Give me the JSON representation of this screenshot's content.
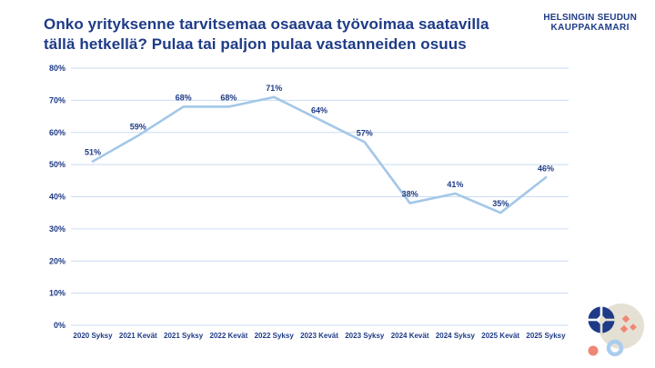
{
  "header": {
    "title_line1": "Onko yrityksenne tarvitsemaa osaavaa työvoimaa saatavilla",
    "title_line2": "tällä hetkellä? Pulaa tai paljon pulaa vastanneiden osuus"
  },
  "logo": {
    "line1": "HELSINGIN SEUDUN",
    "line2": "KAUPPAKAMARI"
  },
  "colors": {
    "navy": "#1e3b87",
    "line_blue": "#a3c7e8",
    "grid_blue": "#c9dcf2",
    "beige": "#e5e0d4",
    "salmon": "#ee8775",
    "ring_blue": "#a9cdee"
  },
  "chart_data": {
    "type": "line",
    "title": "Onko yrityksenne tarvitsemaa osaavaa työvoimaa saatavilla tällä hetkellä? Pulaa tai paljon pulaa vastanneiden osuus",
    "categories": [
      "2020 Syksy",
      "2021 Kevät",
      "2021 Syksy",
      "2022 Kevät",
      "2022 Syksy",
      "2023 Kevät",
      "2023 Syksy",
      "2024 Kevät",
      "2024 Syksy",
      "2025 Kevät",
      "2025 Syksy"
    ],
    "values": [
      51,
      59,
      68,
      68,
      71,
      64,
      57,
      38,
      41,
      35,
      46
    ],
    "unit": "%",
    "xlabel": "",
    "ylabel": "",
    "ylim": [
      0,
      80
    ],
    "ytick_step": 10,
    "ytick_labels": [
      "0%",
      "10%",
      "20%",
      "30%",
      "40%",
      "50%",
      "60%",
      "70%",
      "80%"
    ],
    "grid": true,
    "legend": "none",
    "data_labels_shown": true
  }
}
